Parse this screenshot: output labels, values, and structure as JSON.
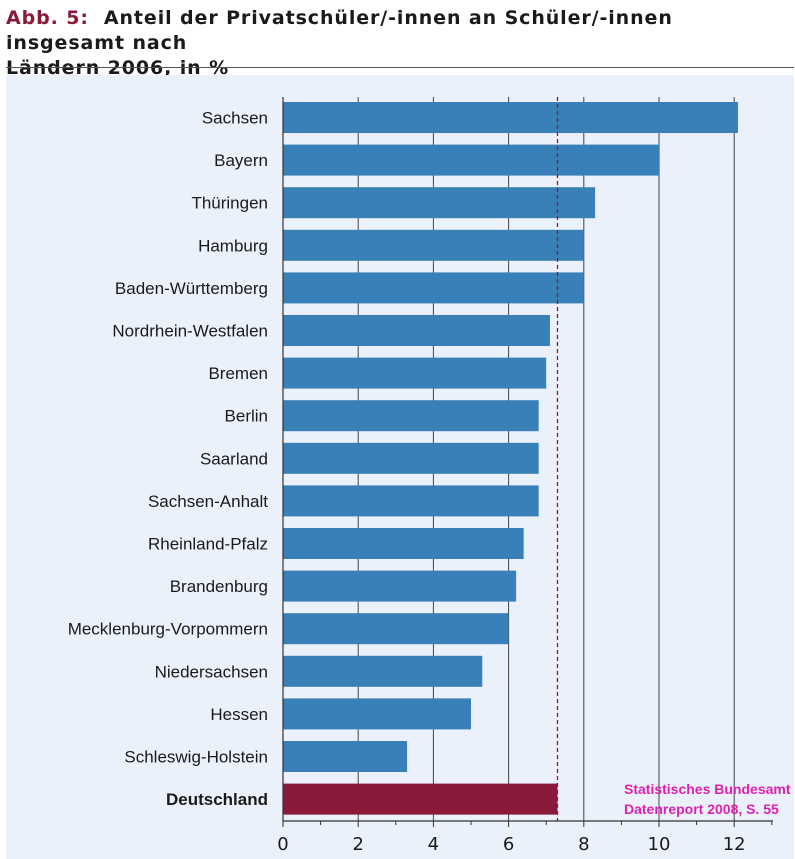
{
  "header": {
    "prefix": "Abb. 5:",
    "text_line1": "Anteil der Privatschüler/-innen an Schüler/-innen insgesamt nach",
    "text_line2": "Ländern 2006, in %"
  },
  "source": {
    "line1": "Statistisches Bundesamt",
    "line2": "Datenreport 2008, S. 55"
  },
  "chart_data": {
    "type": "bar",
    "orientation": "horizontal",
    "categories": [
      "Sachsen",
      "Bayern",
      "Thüringen",
      "Hamburg",
      "Baden-Württemberg",
      "Nordrhein-Westfalen",
      "Bremen",
      "Berlin",
      "Saarland",
      "Sachsen-Anhalt",
      "Rheinland-Pfalz",
      "Brandenburg",
      "Mecklenburg-Vorpommern",
      "Niedersachsen",
      "Hessen",
      "Schleswig-Holstein",
      "Deutschland"
    ],
    "values": [
      12.1,
      10.0,
      8.3,
      8.0,
      8.0,
      7.1,
      7.0,
      6.8,
      6.8,
      6.8,
      6.4,
      6.2,
      6.0,
      5.3,
      5.0,
      3.3,
      7.3
    ],
    "highlight_category": "Deutschland",
    "reference_line": 7.3,
    "xlim": [
      0,
      13
    ],
    "xticks": [
      0,
      2,
      4,
      6,
      8,
      10,
      12
    ],
    "grid": "vertical",
    "colors": {
      "bar": "#3a80b8",
      "highlight": "#8b1a3a",
      "reference_line": "#8b1a3a",
      "grid": "#444444",
      "panel": "#eaf1fa"
    }
  }
}
